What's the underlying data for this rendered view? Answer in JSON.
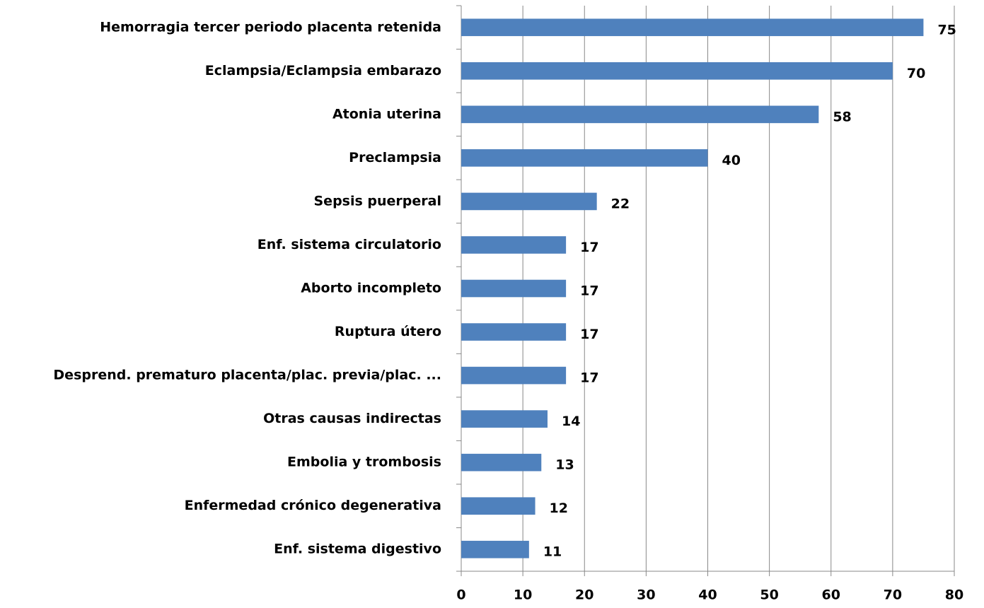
{
  "chart_data": {
    "type": "bar",
    "orientation": "horizontal",
    "categories": [
      "Hemorragia tercer periodo placenta retenida",
      "Eclampsia/Eclampsia  embarazo",
      "Atonia uterina",
      "Preclampsia",
      "Sepsis puerperal",
      "Enf. sistema circulatorio",
      "Aborto incompleto",
      "Ruptura útero",
      "Desprend.  prematuro placenta/plac. previa/plac. ...",
      "Otras causas  indirectas",
      "Embolia y trombosis",
      "Enfermedad crónico degenerativa",
      "Enf. sistema digestivo"
    ],
    "values": [
      75,
      70,
      58,
      40,
      22,
      17,
      17,
      17,
      17,
      14,
      13,
      12,
      11
    ],
    "color": "#4f81bd",
    "xlim": [
      0,
      80
    ],
    "xticks": [
      0,
      10,
      20,
      30,
      40,
      50,
      60,
      70,
      80
    ],
    "grid": true
  }
}
